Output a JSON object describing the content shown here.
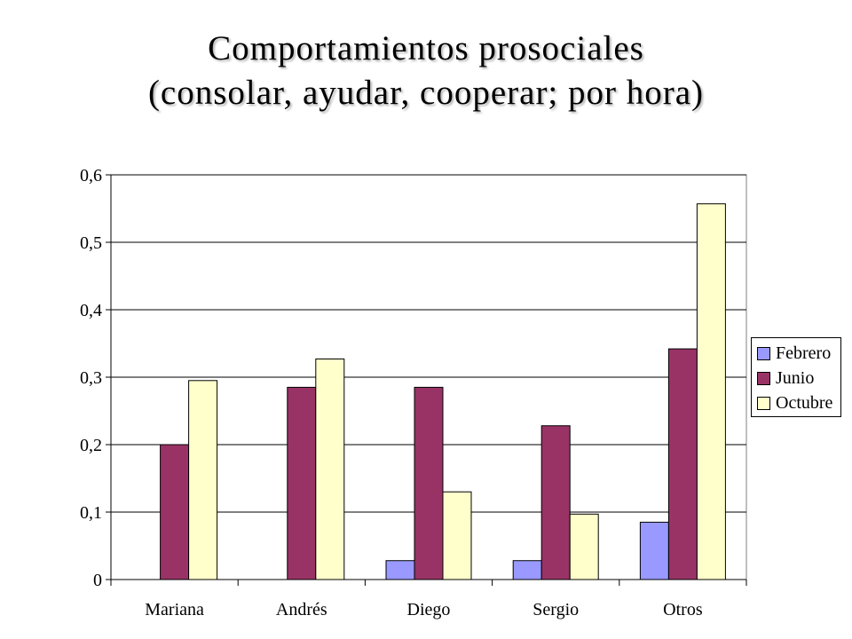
{
  "chart_data": {
    "type": "bar",
    "title": "Comportamientos prosociales",
    "subtitle": "(consolar, ayudar, cooperar; por hora)",
    "categories": [
      "Mariana",
      "Andrés",
      "Diego",
      "Sergio",
      "Otros"
    ],
    "series": [
      {
        "name": "Febrero",
        "color": "#9999ff",
        "values": [
          0,
          0,
          0.028,
          0.028,
          0.085
        ]
      },
      {
        "name": "Junio",
        "color": "#993366",
        "values": [
          0.2,
          0.285,
          0.285,
          0.228,
          0.342
        ]
      },
      {
        "name": "Octubre",
        "color": "#ffffcc",
        "values": [
          0.295,
          0.327,
          0.13,
          0.097,
          0.557
        ]
      }
    ],
    "ylim": [
      0,
      0.6
    ],
    "yticks": [
      "0",
      "0,1",
      "0,2",
      "0,3",
      "0,4",
      "0,5",
      "0,6"
    ],
    "grid": true,
    "legend_position": "right"
  }
}
